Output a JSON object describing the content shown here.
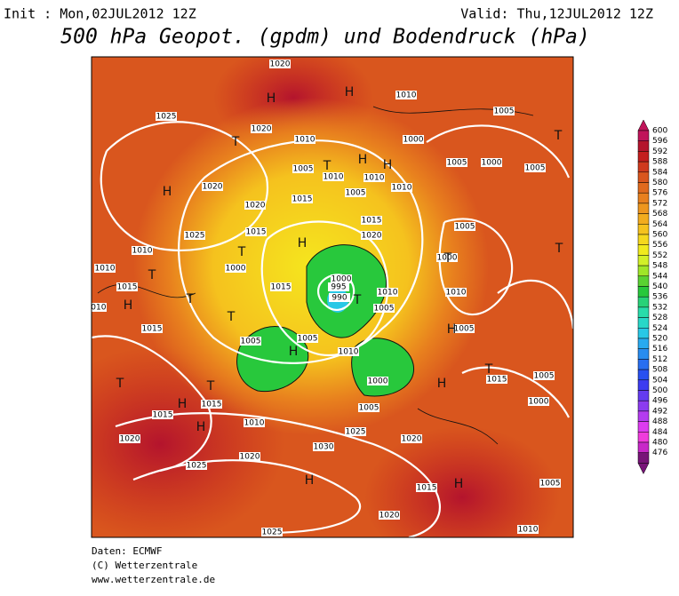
{
  "header": {
    "init": "Init : Mon,02JUL2012 12Z",
    "valid": "Valid: Thu,12JUL2012 12Z",
    "title": "500 hPa Geopot. (gpdm) und Bodendruck (hPa)"
  },
  "colorbar": {
    "ticks": [
      600,
      596,
      592,
      588,
      584,
      580,
      576,
      572,
      568,
      564,
      560,
      556,
      552,
      548,
      544,
      540,
      536,
      532,
      528,
      524,
      520,
      516,
      512,
      508,
      504,
      500,
      496,
      492,
      488,
      484,
      480,
      476
    ],
    "colors": [
      "#c0145a",
      "#b4142d",
      "#c31e1e",
      "#cf3a1e",
      "#d9561e",
      "#e06a1e",
      "#e8801e",
      "#ee961e",
      "#f2ac1e",
      "#f5c21e",
      "#f5d81e",
      "#f0ea1e",
      "#d2f028",
      "#a0e628",
      "#5ad232",
      "#28c83c",
      "#28d278",
      "#28dcaa",
      "#28d8c8",
      "#28c8e6",
      "#28aaf0",
      "#288cf0",
      "#286ef0",
      "#2850f0",
      "#3c3cf0",
      "#643cf0",
      "#8c3cf0",
      "#b43cf0",
      "#dc3cf0",
      "#f03cdc",
      "#c828c8",
      "#781478"
    ]
  },
  "map": {
    "labels": [
      "1020",
      "1010",
      "1005",
      "1025",
      "1020",
      "1010",
      "1000",
      "1005",
      "1010",
      "1015",
      "1005",
      "1010",
      "1010",
      "1005",
      "1000",
      "1005",
      "1020",
      "1025",
      "1020",
      "1015",
      "1015",
      "1020",
      "1005",
      "1000",
      "1010",
      "1000",
      "1015",
      "1000",
      "995",
      "990",
      "1010",
      "1005",
      "1010",
      "1010",
      "1015",
      "1010",
      "1015",
      "1005",
      "1005",
      "1010",
      "1005",
      "1000",
      "1005",
      "1010",
      "1015",
      "1015",
      "1020",
      "1025",
      "1020",
      "1030",
      "1025",
      "1020",
      "1015",
      "1020",
      "1025",
      "1015",
      "1000",
      "1005",
      "1005",
      "1010"
    ],
    "centers": [
      "H",
      "H",
      "H",
      "T",
      "T",
      "H",
      "H",
      "T",
      "H",
      "T",
      "T",
      "T",
      "T",
      "T",
      "H",
      "H",
      "T",
      "H",
      "T",
      "H",
      "H",
      "H",
      "T",
      "H",
      "H",
      "T",
      "T"
    ]
  },
  "footer": {
    "lines": [
      "Daten: ECMWF",
      "(C) Wetterzentrale",
      "www.wetterzentrale.de"
    ]
  }
}
